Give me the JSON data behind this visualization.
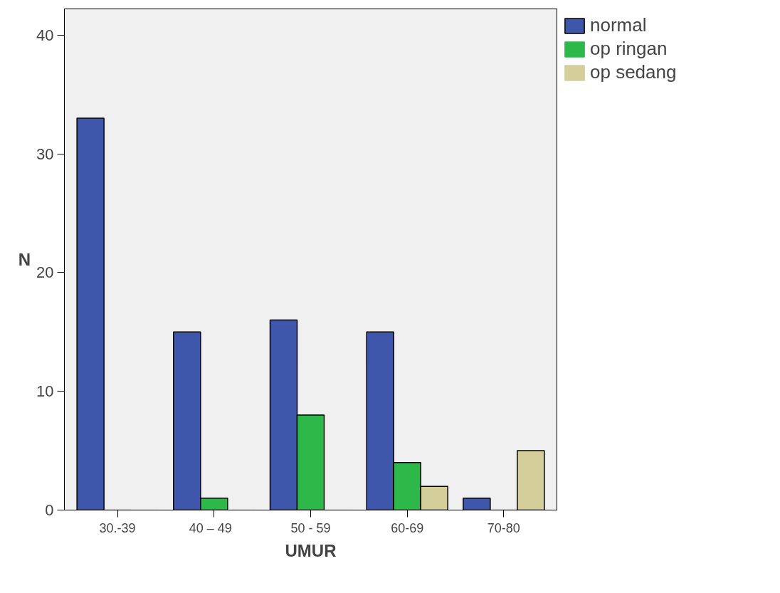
{
  "chart_data": {
    "type": "bar",
    "xlabel": "UMUR",
    "ylabel": "N",
    "categories": [
      "30.-39",
      "40  –  49",
      "50 - 59",
      "60-69",
      "70-80"
    ],
    "series": [
      {
        "name": "normal",
        "color": "#3f57ab",
        "values": [
          33,
          15,
          16,
          15,
          1
        ]
      },
      {
        "name": "op ringan",
        "color": "#2fb84a",
        "values": [
          0,
          1,
          8,
          4,
          0
        ]
      },
      {
        "name": "op sedang",
        "color": "#d4ce9a",
        "values": [
          0,
          0,
          0,
          2,
          5
        ]
      }
    ],
    "ylim": [
      0,
      42.2
    ],
    "yticks": [
      0,
      10,
      20,
      30,
      40
    ],
    "grid": false,
    "legend": "top right"
  }
}
